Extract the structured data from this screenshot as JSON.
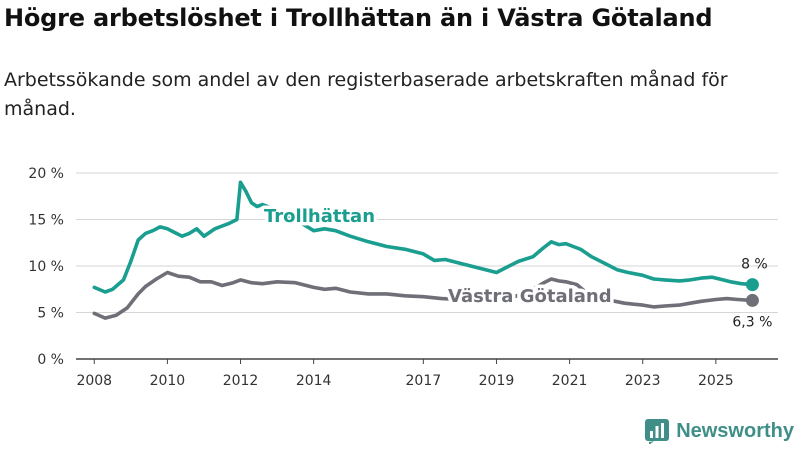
{
  "title": "Högre arbetslöshet i Trollhättan än i Västra Götaland",
  "subtitle": "Arbetssökande som andel av den registerbaserade arbetskraften månad för månad.",
  "brand": {
    "name": "Newsworthy",
    "color": "#3f8f88"
  },
  "chart_data": {
    "type": "line",
    "title": "Högre arbetslöshet i Trollhättan än i Västra Götaland",
    "xlabel": "",
    "ylabel": "",
    "ylim": [
      0,
      20
    ],
    "xlim": [
      2007.5,
      2026.7
    ],
    "y_ticks": [
      0,
      5,
      10,
      15,
      20
    ],
    "y_tick_labels": [
      "0 %",
      "5 %",
      "10 %",
      "15 %",
      "20 %"
    ],
    "x_ticks": [
      2008,
      2010,
      2012,
      2014,
      2017,
      2019,
      2021,
      2023,
      2025
    ],
    "x_tick_labels": [
      "2008",
      "2010",
      "2012",
      "2014",
      "2017",
      "2019",
      "2021",
      "2023",
      "2025"
    ],
    "grid": true,
    "series": [
      {
        "name": "Trollhättan",
        "color": "#1a9e8f",
        "end_label": "8 %",
        "x": [
          2008.0,
          2008.3,
          2008.5,
          2008.8,
          2009.0,
          2009.2,
          2009.4,
          2009.6,
          2009.8,
          2010.0,
          2010.2,
          2010.4,
          2010.6,
          2010.8,
          2011.0,
          2011.3,
          2011.5,
          2011.7,
          2011.9,
          2012.0,
          2012.15,
          2012.3,
          2012.45,
          2012.6,
          2012.8,
          2013.0,
          2013.5,
          2014.0,
          2014.3,
          2014.6,
          2015.0,
          2015.5,
          2016.0,
          2016.5,
          2017.0,
          2017.3,
          2017.6,
          2018.0,
          2018.5,
          2019.0,
          2019.3,
          2019.6,
          2020.0,
          2020.3,
          2020.5,
          2020.7,
          2020.9,
          2021.1,
          2021.3,
          2021.6,
          2022.0,
          2022.3,
          2022.6,
          2023.0,
          2023.3,
          2023.6,
          2024.0,
          2024.3,
          2024.6,
          2024.9,
          2025.1,
          2025.4,
          2025.7,
          2026.0
        ],
        "values": [
          7.7,
          7.2,
          7.5,
          8.5,
          10.5,
          12.8,
          13.5,
          13.8,
          14.2,
          14.0,
          13.6,
          13.2,
          13.5,
          14.0,
          13.2,
          14.0,
          14.3,
          14.6,
          15.0,
          19.0,
          18.0,
          16.8,
          16.4,
          16.6,
          16.3,
          16.0,
          15.0,
          13.8,
          14.0,
          13.8,
          13.2,
          12.6,
          12.1,
          11.8,
          11.3,
          10.6,
          10.7,
          10.3,
          9.8,
          9.3,
          9.9,
          10.5,
          11.0,
          12.0,
          12.6,
          12.3,
          12.4,
          12.1,
          11.8,
          11.0,
          10.2,
          9.6,
          9.3,
          9.0,
          8.6,
          8.5,
          8.4,
          8.5,
          8.7,
          8.8,
          8.6,
          8.3,
          8.1,
          8.0
        ]
      },
      {
        "name": "Västra Götaland",
        "color": "#6f6f78",
        "end_label": "6,3 %",
        "x": [
          2008.0,
          2008.3,
          2008.6,
          2008.9,
          2009.2,
          2009.4,
          2009.7,
          2010.0,
          2010.3,
          2010.6,
          2010.9,
          2011.2,
          2011.5,
          2011.8,
          2012.0,
          2012.3,
          2012.6,
          2013.0,
          2013.5,
          2014.0,
          2014.3,
          2014.6,
          2015.0,
          2015.5,
          2016.0,
          2016.5,
          2017.0,
          2017.5,
          2018.0,
          2018.5,
          2019.0,
          2019.5,
          2020.0,
          2020.3,
          2020.5,
          2020.7,
          2020.9,
          2021.2,
          2021.5,
          2022.0,
          2022.5,
          2023.0,
          2023.3,
          2023.6,
          2024.0,
          2024.3,
          2024.6,
          2025.0,
          2025.3,
          2025.6,
          2026.0
        ],
        "values": [
          4.9,
          4.4,
          4.7,
          5.5,
          7.0,
          7.8,
          8.6,
          9.3,
          8.9,
          8.8,
          8.3,
          8.3,
          7.9,
          8.2,
          8.5,
          8.2,
          8.1,
          8.3,
          8.2,
          7.7,
          7.5,
          7.6,
          7.2,
          7.0,
          7.0,
          6.8,
          6.7,
          6.5,
          6.4,
          6.3,
          6.3,
          6.7,
          7.5,
          8.2,
          8.6,
          8.4,
          8.3,
          8.0,
          7.0,
          6.4,
          6.0,
          5.8,
          5.6,
          5.7,
          5.8,
          6.0,
          6.2,
          6.4,
          6.5,
          6.4,
          6.3
        ]
      }
    ]
  }
}
